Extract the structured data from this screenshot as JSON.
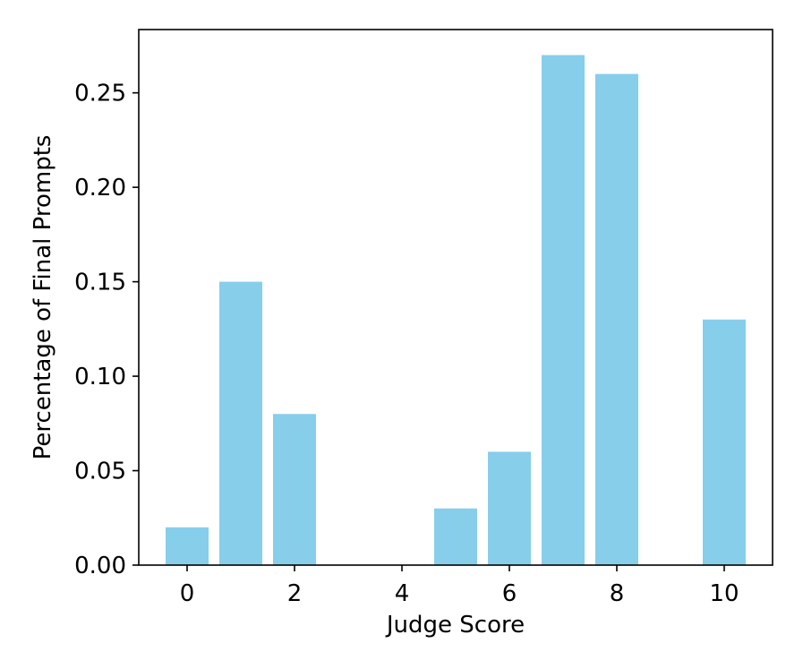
{
  "chart_data": {
    "type": "bar",
    "x": [
      0,
      1,
      2,
      5,
      6,
      7,
      8,
      10
    ],
    "values": [
      0.02,
      0.15,
      0.08,
      0.03,
      0.06,
      0.27,
      0.26,
      0.13
    ],
    "bar_width": 0.8,
    "color": "#87ceeb",
    "title": "",
    "xlabel": "Judge Score",
    "ylabel": "Percentage of Final Prompts",
    "xlim": [
      -0.9,
      10.9
    ],
    "ylim": [
      0,
      0.2835
    ],
    "xticks": [
      0,
      2,
      4,
      6,
      8,
      10
    ],
    "xtick_labels": [
      "0",
      "2",
      "4",
      "6",
      "8",
      "10"
    ],
    "yticks": [
      0,
      0.05,
      0.1,
      0.15,
      0.2,
      0.25
    ],
    "ytick_labels": [
      "0.00",
      "0.05",
      "0.10",
      "0.15",
      "0.20",
      "0.25"
    ],
    "grid": false,
    "legend": "none"
  }
}
